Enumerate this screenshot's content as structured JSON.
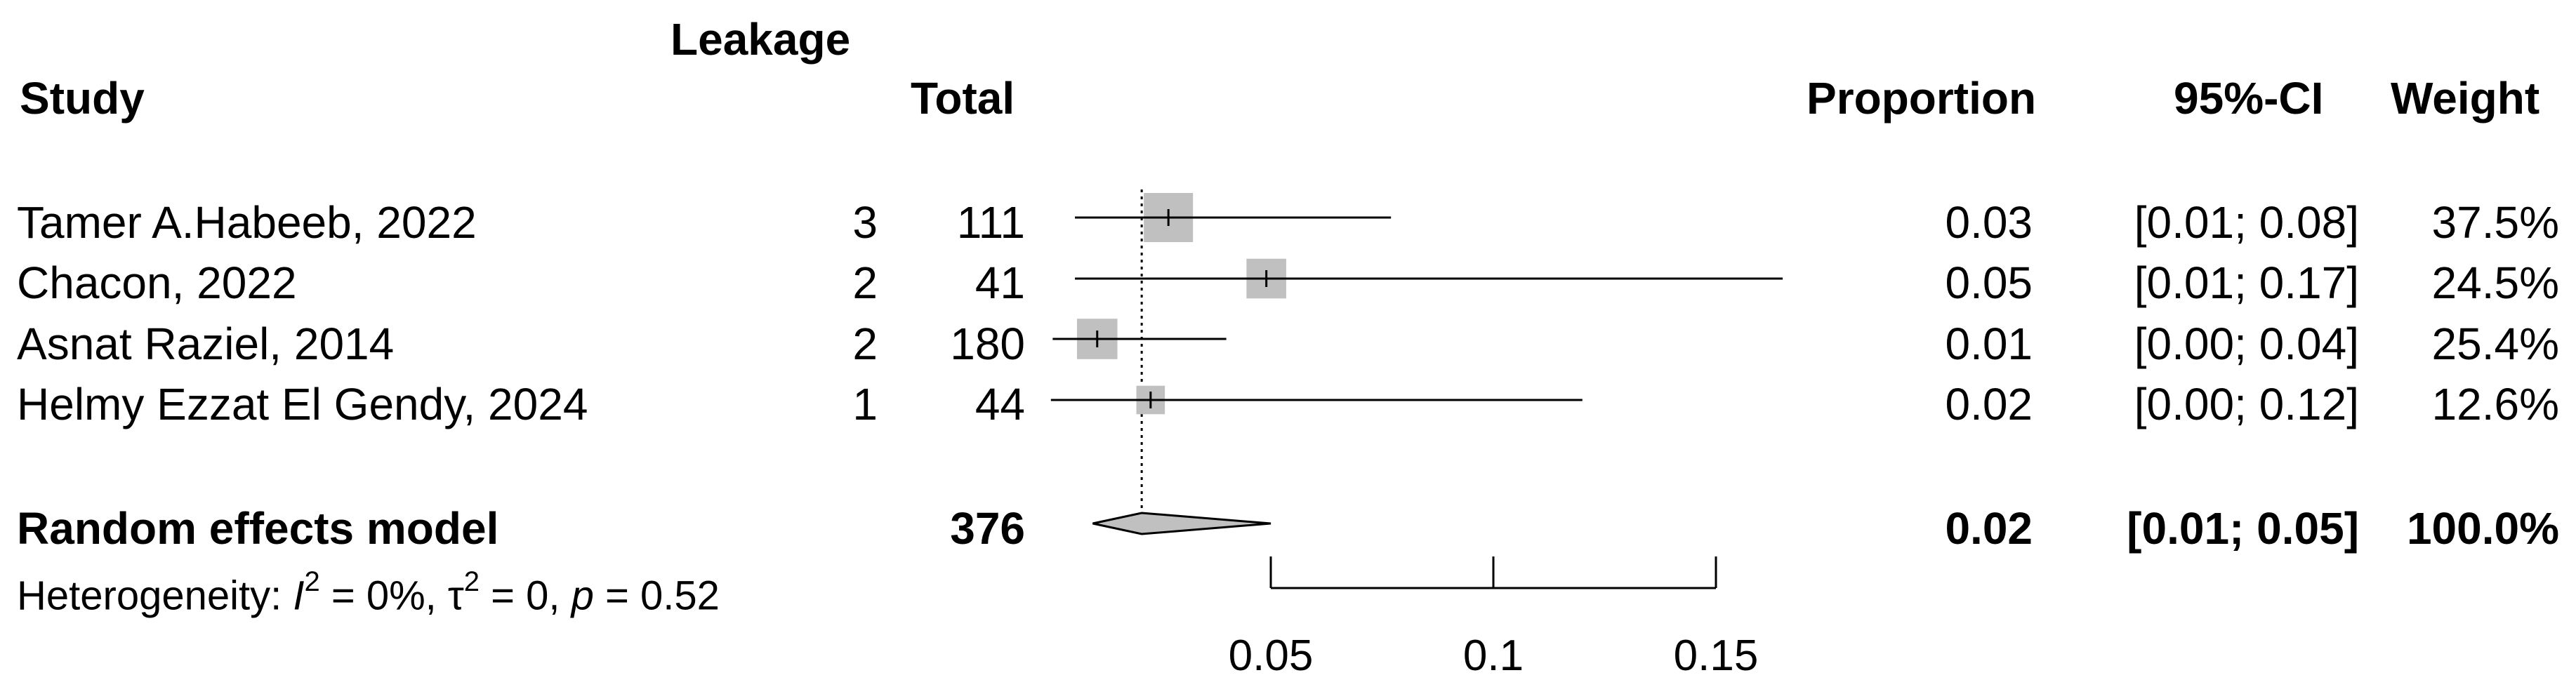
{
  "headers": {
    "study": "Study",
    "events": "Leakage",
    "total": "Total",
    "estimate": "Proportion",
    "ci": "95%-CI",
    "weight": "Weight"
  },
  "rows": [
    {
      "study": "Tamer A.Habeeb, 2022",
      "events": "3",
      "total": "111",
      "estimate": "0.03",
      "ci": "[0.01; 0.08]",
      "weight": "37.5%"
    },
    {
      "study": "Chacon, 2022",
      "events": "2",
      "total": "41",
      "estimate": "0.05",
      "ci": "[0.01; 0.17]",
      "weight": "24.5%"
    },
    {
      "study": "Asnat Raziel, 2014",
      "events": "2",
      "total": "180",
      "estimate": "0.01",
      "ci": "[0.00; 0.04]",
      "weight": "25.4%"
    },
    {
      "study": "Helmy Ezzat El Gendy, 2024",
      "events": "1",
      "total": "44",
      "estimate": "0.02",
      "ci": "[0.00; 0.12]",
      "weight": "12.6%"
    }
  ],
  "summary": {
    "label": "Random effects model",
    "total": "376",
    "estimate": "0.02",
    "ci": "[0.01; 0.05]",
    "weight": "100.0%"
  },
  "heterogeneity": {
    "prefix": "Heterogeneity: ",
    "i2_symbol": "I",
    "i2_sup": "2",
    "i2_value": " = 0%, ",
    "tau_symbol": "τ",
    "tau_sup": "2",
    "tau_value": " = 0, ",
    "p_symbol": "p",
    "p_value": " = 0.52"
  },
  "chart_data": {
    "type": "forest",
    "x_ticks": [
      0.05,
      0.1,
      0.15
    ],
    "x_tick_labels": [
      "0.05",
      "0.1",
      "0.15"
    ],
    "reference_line": 0.021,
    "studies": [
      {
        "name": "Tamer A.Habeeb, 2022",
        "estimate": 0.027,
        "lower": 0.006,
        "upper": 0.077,
        "weight": 37.5
      },
      {
        "name": "Chacon, 2022",
        "estimate": 0.049,
        "lower": 0.006,
        "upper": 0.165,
        "weight": 24.5
      },
      {
        "name": "Asnat Raziel, 2014",
        "estimate": 0.011,
        "lower": 0.001,
        "upper": 0.04,
        "weight": 25.4
      },
      {
        "name": "Helmy Ezzat El Gendy, 2024",
        "estimate": 0.023,
        "lower": 0.0006,
        "upper": 0.12,
        "weight": 12.6
      }
    ],
    "pooled": {
      "estimate": 0.021,
      "lower": 0.01,
      "upper": 0.05
    },
    "colors": {
      "box": "#c0c0c0",
      "diamond": "#c0c0c0",
      "line": "#000000"
    }
  }
}
